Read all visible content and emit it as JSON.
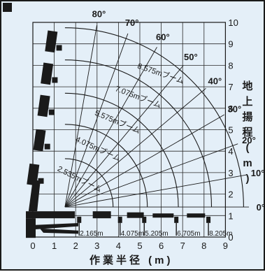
{
  "y_axis": {
    "ticks": [
      "0",
      "1",
      "2",
      "3",
      "4",
      "5",
      "6",
      "7",
      "8",
      "9",
      "10"
    ],
    "title_chars": [
      "地",
      "上",
      "揚",
      "程",
      "(",
      "m",
      ")"
    ]
  },
  "x_axis": {
    "ticks": [
      "0",
      "1",
      "2",
      "3",
      "4",
      "5",
      "6",
      "7",
      "8",
      "9"
    ],
    "title": "作業半径 (m)"
  },
  "angles": [
    {
      "label": "80°",
      "deg": 80
    },
    {
      "label": "70°",
      "deg": 70
    },
    {
      "label": "60°",
      "deg": 60
    },
    {
      "label": "50°",
      "deg": 50
    },
    {
      "label": "40°",
      "deg": 40
    },
    {
      "label": "30°",
      "deg": 30
    },
    {
      "label": "20°",
      "deg": 20
    },
    {
      "label": "10°",
      "deg": 10
    },
    {
      "label": "0°",
      "deg": 0
    }
  ],
  "booms": [
    {
      "label": "2.535mブーム",
      "length": 2.535
    },
    {
      "label": "4.075mブーム",
      "length": 4.075
    },
    {
      "label": "5.575mブーム",
      "length": 5.575
    },
    {
      "label": "7.075mブーム",
      "length": 7.075
    },
    {
      "label": "8.575mブーム",
      "length": 8.575
    }
  ],
  "radius_marks": [
    {
      "label": "2.165m",
      "value": 2.165
    },
    {
      "label": "4.075m",
      "value": 4.075
    },
    {
      "label": "5.205m",
      "value": 5.205
    },
    {
      "label": "6.705m",
      "value": 6.705
    },
    {
      "label": "8.205m",
      "value": 8.205
    }
  ],
  "colors": {
    "background": "#e4eff8",
    "ink": "#1a1a1a",
    "grid": "#2a2a2a"
  },
  "icons": [
    "crane-truck-icon",
    "crane-hook-icon"
  ]
}
